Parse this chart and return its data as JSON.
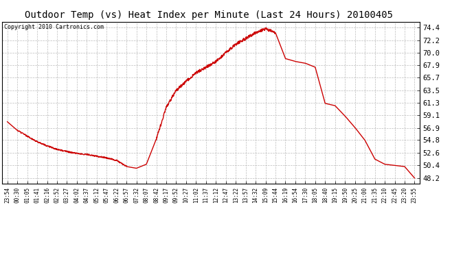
{
  "title": "Outdoor Temp (vs) Heat Index per Minute (Last 24 Hours) 20100405",
  "copyright_text": "Copyright 2010 Cartronics.com",
  "line_color": "#cc0000",
  "background_color": "#ffffff",
  "plot_bg_color": "#ffffff",
  "grid_color": "#aaaaaa",
  "yticks": [
    48.2,
    50.4,
    52.6,
    54.8,
    56.9,
    59.1,
    61.3,
    63.5,
    65.7,
    67.9,
    70.0,
    72.2,
    74.4
  ],
  "ylim": [
    47.2,
    75.4
  ],
  "xtick_labels": [
    "23:54",
    "00:30",
    "01:05",
    "01:41",
    "02:16",
    "02:52",
    "03:27",
    "04:02",
    "04:37",
    "05:12",
    "05:47",
    "06:22",
    "06:57",
    "07:32",
    "08:07",
    "08:42",
    "09:17",
    "09:52",
    "10:27",
    "11:02",
    "11:37",
    "12:12",
    "12:47",
    "13:22",
    "13:57",
    "14:32",
    "15:09",
    "15:44",
    "16:19",
    "16:54",
    "17:30",
    "18:05",
    "18:40",
    "19:15",
    "19:50",
    "20:25",
    "21:00",
    "21:35",
    "22:10",
    "22:45",
    "23:20",
    "23:55"
  ],
  "key_points": {
    "0": 58.0,
    "1": 56.5,
    "2": 55.5,
    "3": 54.5,
    "4": 53.8,
    "5": 53.2,
    "6": 52.8,
    "7": 52.5,
    "8": 52.3,
    "9": 52.0,
    "10": 51.7,
    "11": 51.3,
    "12": 50.2,
    "13": 49.9,
    "14": 50.6,
    "15": 55.0,
    "16": 60.5,
    "17": 63.5,
    "18": 65.0,
    "19": 66.5,
    "20": 67.5,
    "21": 68.5,
    "22": 70.0,
    "23": 71.5,
    "24": 72.5,
    "25": 73.5,
    "26": 74.2,
    "27": 73.5,
    "28": 69.0,
    "29": 68.5,
    "30": 68.2,
    "31": 67.5,
    "32": 61.2,
    "33": 60.8,
    "34": 59.0,
    "35": 57.0,
    "36": 54.8,
    "37": 51.5,
    "38": 50.6,
    "39": 50.4,
    "40": 50.2,
    "41": 48.2
  },
  "title_fontsize": 10,
  "copyright_fontsize": 6,
  "xtick_fontsize": 5.5,
  "ytick_fontsize": 7.5,
  "linewidth": 1.0
}
